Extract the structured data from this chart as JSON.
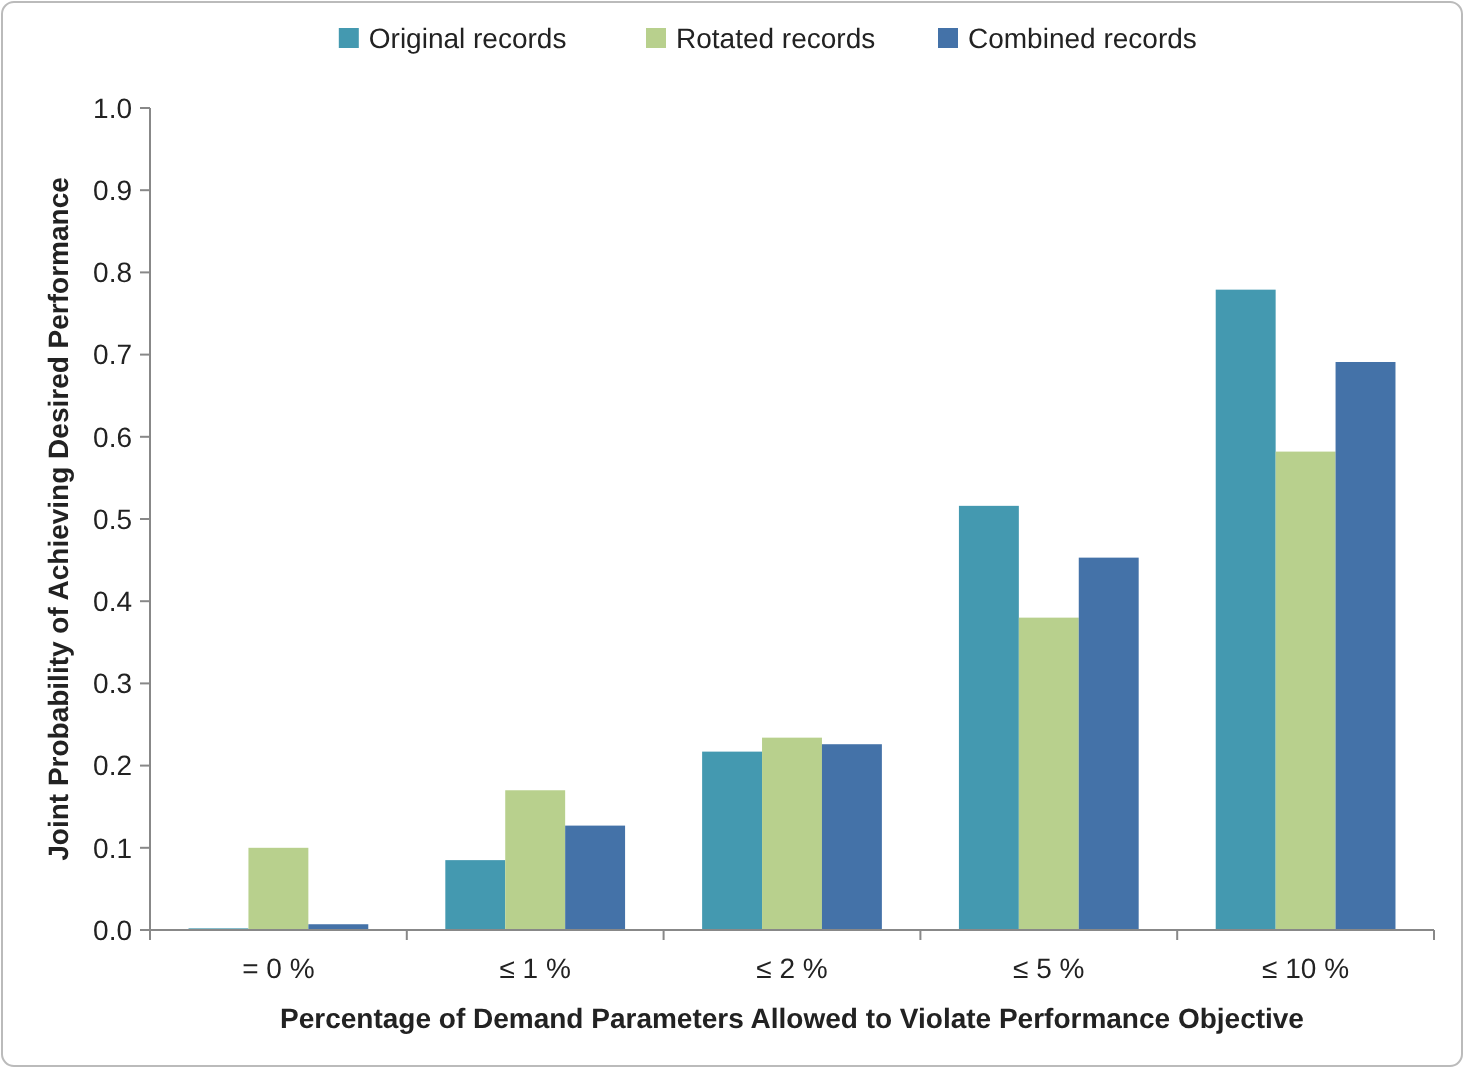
{
  "chart_data": {
    "type": "bar",
    "xlabel": "Percentage of Demand Parameters Allowed to Violate Performance Objective",
    "ylabel": "Joint Probability of Achieving Desired Performance",
    "categories": [
      "= 0 %",
      "≤ 1 %",
      "≤ 2 %",
      "≤ 5 %",
      "≤ 10 %"
    ],
    "series": [
      {
        "name": "Original records",
        "color": "#4499b0",
        "values": [
          0.002,
          0.085,
          0.217,
          0.516,
          0.779
        ]
      },
      {
        "name": "Rotated records",
        "color": "#b8d08d",
        "values": [
          0.1,
          0.17,
          0.234,
          0.38,
          0.582
        ]
      },
      {
        "name": "Combined records",
        "color": "#4472a8",
        "values": [
          0.007,
          0.127,
          0.226,
          0.453,
          0.691
        ]
      }
    ],
    "ylim": [
      0,
      1
    ],
    "yticks": [
      {
        "value": 0,
        "label": "0.0"
      },
      {
        "value": 0.1,
        "label": "0.1"
      },
      {
        "value": 0.2,
        "label": "0.2"
      },
      {
        "value": 0.3,
        "label": "0.3"
      },
      {
        "value": 0.4,
        "label": "0.4"
      },
      {
        "value": 0.5,
        "label": "0.5"
      },
      {
        "value": 0.6,
        "label": "0.6"
      },
      {
        "value": 0.7,
        "label": "0.7"
      },
      {
        "value": 0.8,
        "label": "0.8"
      },
      {
        "value": 0.9,
        "label": "0.9"
      },
      {
        "value": 1,
        "label": "1.0"
      }
    ],
    "grid": false,
    "legend": "top"
  }
}
